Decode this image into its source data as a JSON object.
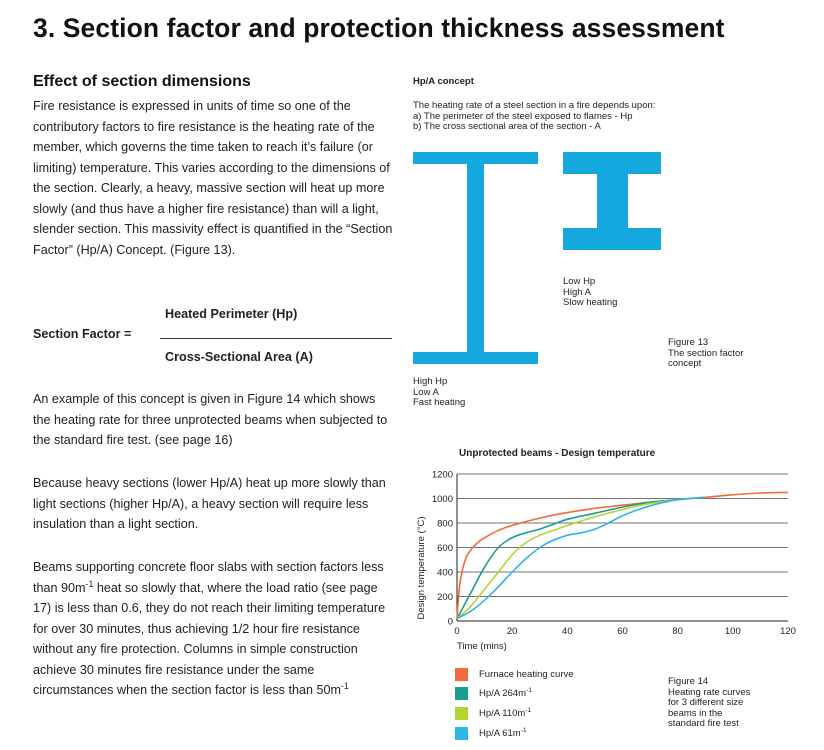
{
  "page": {
    "title": "3. Section factor and protection thickness assessment",
    "subtitle": "Effect of section dimensions",
    "para1": "Fire resistance is expressed in units of time so one of the contributory factors to fire resistance is the heating rate of the member, which governs the time taken to reach it’s failure (or limiting) temperature. This varies according to the dimensions of the section. Clearly, a heavy, massive section will heat up more slowly (and thus have a higher fire resistance) than will a light, slender section. This massivity effect is quantified in the “Section Factor” (Hp/A) Concept. (Figure 13).",
    "formula": {
      "label": "Section Factor  =",
      "numerator": "Heated Perimeter (Hp)",
      "denominator": "Cross-Sectional Area (A)"
    },
    "para2": "An example of this concept is given in Figure 14 which shows the heating rate for three unprotected beams when subjected to the standard fire test. (see page 16)",
    "para3": "Because heavy sections (lower Hp/A) heat up more slowly than light sections (higher Hp/A), a heavy section will require less insulation than a light section.",
    "para4_a": "Beams supporting concrete floor slabs with section factors less than 90m",
    "para4_sup": "-1",
    "para4_b": " heat so slowly that, where the load ratio (see page 17) is less than 0.6, they do not reach their limiting temperature for over 30 minutes, thus achieving 1/2 hour fire resistance without any fire protection. Columns in simple construction achieve 30 minutes fire resistance under the same circumstances when the section factor is less than 50m",
    "para4_sup2": "-1"
  },
  "figure13": {
    "heading": "Hp/A concept",
    "intro1": "The heating rate of a steel section in a fire depends upon:",
    "intro2": "a) The perimeter of the steel exposed to flames - Hp",
    "intro3": "b) The cross sectional area of the section - A",
    "heavy_label1": "Low Hp",
    "heavy_label2": "High A",
    "heavy_label3": "Slow heating",
    "light_label1": "High Hp",
    "light_label2": "Low A",
    "light_label3": "Fast heating",
    "caption1": "Figure 13",
    "caption2": "The section factor",
    "caption3": "concept",
    "beam_color": "#14a8df"
  },
  "figure14": {
    "caption1": "Figure 14",
    "caption2": "Heating rate curves",
    "caption3": "for 3 different size",
    "caption4": "beams in the",
    "caption5": "standard fire test"
  },
  "chart_data": {
    "type": "line",
    "title": "Unprotected beams - Design temperature",
    "xlabel": "Time (mins)",
    "ylabel": "Design temperature (°C)",
    "xlim": [
      0,
      120
    ],
    "ylim": [
      0,
      1200
    ],
    "xticks": [
      0,
      20,
      40,
      60,
      80,
      100,
      120
    ],
    "yticks": [
      0,
      200,
      400,
      600,
      800,
      1000,
      1200
    ],
    "grid": "horizontal",
    "legend_position": "bottom-left",
    "series": [
      {
        "name": "Furnace heating curve",
        "color": "#f26b3a",
        "x": [
          0,
          1,
          3,
          5,
          8,
          10,
          15,
          20,
          30,
          40,
          50,
          60,
          70,
          80,
          90,
          100,
          110,
          120
        ],
        "y": [
          20,
          300,
          500,
          580,
          650,
          680,
          740,
          780,
          840,
          885,
          920,
          945,
          970,
          990,
          1010,
          1030,
          1045,
          1050
        ]
      },
      {
        "name": "Hp/A 264m",
        "name_sup": "-1",
        "color": "#1a9e8f",
        "x": [
          0,
          5,
          10,
          15,
          20,
          25,
          30,
          35,
          40,
          50,
          60,
          70,
          80
        ],
        "y": [
          20,
          230,
          440,
          600,
          680,
          720,
          750,
          790,
          830,
          880,
          930,
          970,
          990
        ]
      },
      {
        "name": "Hp/A 110m",
        "name_sup": "-1",
        "color": "#b4d334",
        "x": [
          0,
          5,
          10,
          15,
          20,
          25,
          30,
          35,
          40,
          50,
          60,
          70,
          80
        ],
        "y": [
          20,
          120,
          260,
          400,
          540,
          640,
          700,
          740,
          780,
          850,
          910,
          960,
          990
        ]
      },
      {
        "name": "Hp/A 61m",
        "name_sup": "-1",
        "color": "#2fb4e6",
        "x": [
          0,
          5,
          10,
          15,
          20,
          25,
          30,
          35,
          40,
          45,
          50,
          55,
          60,
          70,
          80,
          90
        ],
        "y": [
          20,
          80,
          170,
          280,
          400,
          510,
          600,
          660,
          700,
          720,
          750,
          800,
          860,
          940,
          990,
          1010
        ]
      }
    ]
  }
}
